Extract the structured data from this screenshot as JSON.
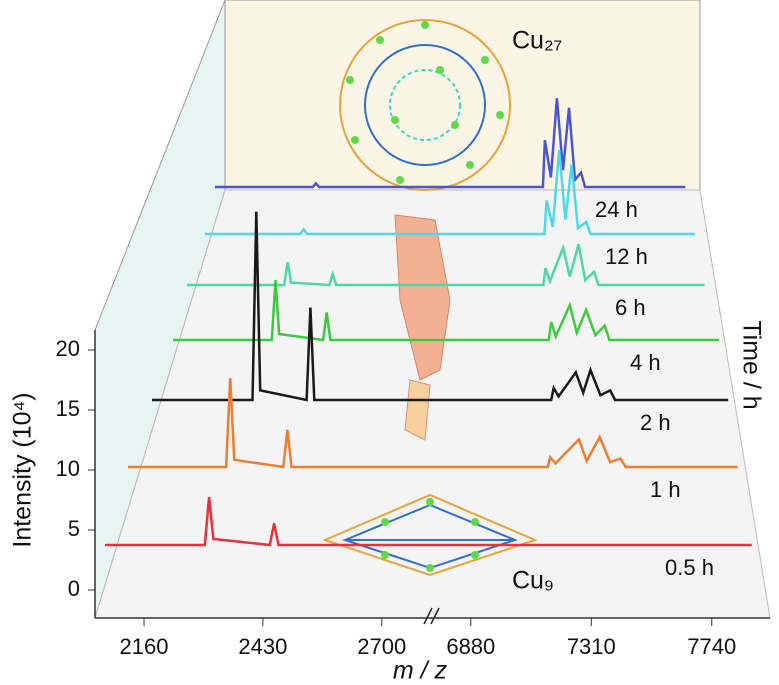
{
  "chart_data": {
    "type": "waterfall",
    "x_label": "m / z",
    "y_label": "Intensity (10⁴)",
    "z_label": "Time / h",
    "annotations": [
      "Cu₂₇",
      "Cu₉"
    ],
    "xlim": [
      2060,
      7900
    ],
    "xbreak": [
      2760,
      6800
    ],
    "xticks": [
      2160,
      2430,
      2700,
      6880,
      7310,
      7740
    ],
    "ylim": [
      -2,
      22
    ],
    "yticks": [
      0,
      5,
      10,
      15,
      20
    ],
    "series": [
      {
        "name": "0.5 h",
        "color": "#e8313a",
        "x": [
          2060,
          2290,
          2300,
          2310,
          2440,
          2450,
          2460,
          2760,
          6800,
          7900
        ],
        "values": [
          0,
          0,
          4,
          0.5,
          0,
          1.8,
          0,
          0,
          0,
          0
        ]
      },
      {
        "name": "1 h",
        "color": "#ed7d31",
        "x": [
          2060,
          2300,
          2310,
          2320,
          2440,
          2450,
          2460,
          2760,
          6800,
          7170,
          7180,
          7200,
          7290,
          7320,
          7370,
          7410,
          7450,
          7470,
          7900
        ],
        "values": [
          0,
          0,
          7.4,
          0.6,
          0,
          3.1,
          0,
          0,
          0,
          0,
          0.8,
          0.3,
          2.3,
          0.5,
          2.5,
          0.4,
          0.7,
          0,
          0
        ]
      },
      {
        "name": "2 h",
        "color": "#1a1a1a",
        "x": [
          2060,
          2320,
          2330,
          2340,
          2460,
          2470,
          2480,
          2760,
          6800,
          7180,
          7190,
          7210,
          7280,
          7310,
          7340,
          7380,
          7420,
          7440,
          7900
        ],
        "values": [
          0,
          0,
          15.7,
          0.8,
          0,
          7.7,
          0,
          0,
          0,
          0,
          1.0,
          0.3,
          2.3,
          0.6,
          2.5,
          0.4,
          0.8,
          0,
          0
        ]
      },
      {
        "name": "4 h",
        "color": "#3ec93e",
        "x": [
          2060,
          2330,
          2340,
          2350,
          2470,
          2480,
          2490,
          2760,
          6800,
          7170,
          7180,
          7200,
          7260,
          7290,
          7330,
          7370,
          7410,
          7430,
          7900
        ],
        "values": [
          0,
          0,
          5,
          0.5,
          0,
          2.3,
          0,
          0,
          0,
          0,
          1.5,
          0.3,
          2.9,
          0.6,
          2.5,
          0.4,
          1.2,
          0,
          0
        ]
      },
      {
        "name": "6 h",
        "color": "#4fd6a6",
        "x": [
          2060,
          2340,
          2350,
          2360,
          2470,
          2480,
          2490,
          2760,
          6800,
          7170,
          7180,
          7200,
          7260,
          7290,
          7330,
          7360,
          7400,
          7420,
          7900
        ],
        "values": [
          0,
          0,
          1.9,
          0.2,
          0,
          0.9,
          0,
          0,
          0,
          0,
          1.4,
          0.3,
          3.1,
          0.7,
          3.4,
          0.4,
          1.1,
          0,
          0
        ]
      },
      {
        "name": "12 h",
        "color": "#4fd8e8",
        "x": [
          2060,
          2350,
          2360,
          2370,
          2760,
          6800,
          7180,
          7190,
          7220,
          7250,
          7280,
          7310,
          7340,
          7380,
          7400,
          7900
        ],
        "values": [
          0,
          0,
          0.4,
          0,
          0,
          0,
          0,
          2.8,
          0.6,
          7,
          1.2,
          5.8,
          0.5,
          1.0,
          0,
          0
        ]
      },
      {
        "name": "24 h",
        "color": "#4a55d6",
        "x": [
          2060,
          2370,
          2380,
          2390,
          2760,
          6800,
          7190,
          7200,
          7230,
          7260,
          7290,
          7320,
          7350,
          7380,
          7400,
          7900
        ],
        "values": [
          0,
          0,
          0.3,
          0,
          0,
          0,
          0,
          3.9,
          0.8,
          7.4,
          1.4,
          6.6,
          0.6,
          1.2,
          0,
          0
        ]
      }
    ]
  }
}
